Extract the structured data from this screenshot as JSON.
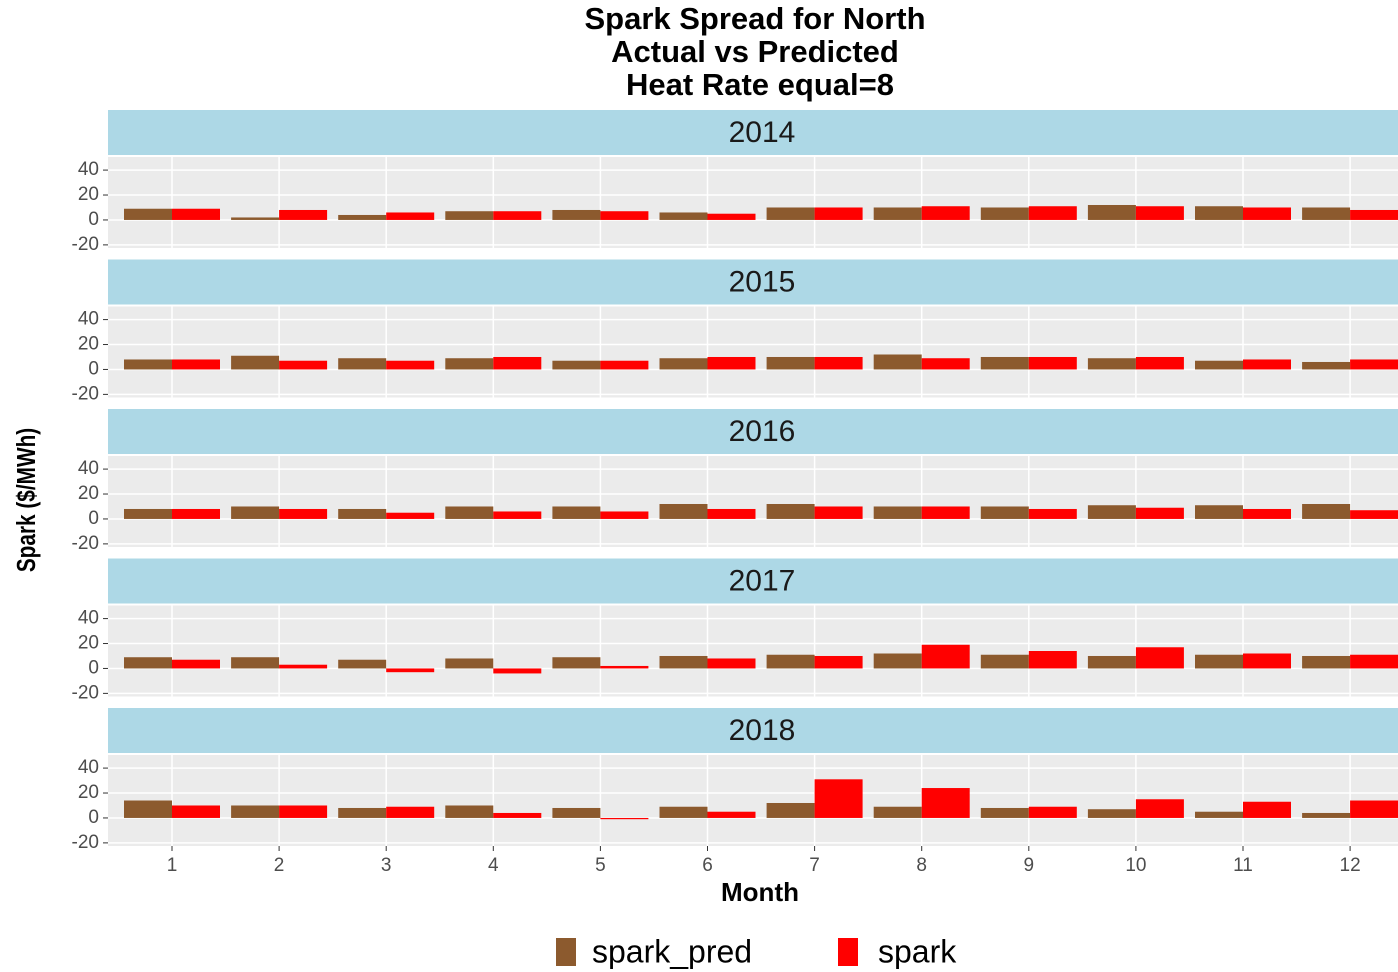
{
  "chart_data": {
    "type": "bar",
    "title": [
      "Spark Spread for North",
      "Actual vs Predicted",
      "Heat Rate equal=8"
    ],
    "xlabel": "Month",
    "ylabel": "Spark ($/MWh)",
    "categories": [
      1,
      2,
      3,
      4,
      5,
      6,
      7,
      8,
      9,
      10,
      11,
      12
    ],
    "ylim": [
      -22.5,
      50.5
    ],
    "yticks": [
      -20,
      0,
      20,
      40
    ],
    "grid": true,
    "series": [
      {
        "name": "spark_pred",
        "color": "#8c5a2e"
      },
      {
        "name": "spark",
        "color": "#ff0000"
      }
    ],
    "facets": [
      {
        "label": "2014",
        "values": [
          [
            9,
            2,
            4,
            7,
            8,
            6,
            10,
            10,
            10,
            12,
            11,
            10
          ],
          [
            9,
            8,
            6,
            7,
            7,
            5,
            10,
            11,
            11,
            11,
            10,
            8
          ]
        ]
      },
      {
        "label": "2015",
        "values": [
          [
            8,
            11,
            9,
            9,
            7,
            9,
            10,
            12,
            10,
            9,
            7,
            6
          ],
          [
            8,
            7,
            7,
            10,
            7,
            10,
            10,
            9,
            10,
            10,
            8,
            8
          ]
        ]
      },
      {
        "label": "2016",
        "values": [
          [
            8,
            10,
            8,
            10,
            10,
            12,
            12,
            10,
            10,
            11,
            11,
            12
          ],
          [
            8,
            8,
            5,
            6,
            6,
            8,
            10,
            10,
            8,
            9,
            8,
            7
          ]
        ]
      },
      {
        "label": "2017",
        "values": [
          [
            9,
            9,
            7,
            8,
            9,
            10,
            11,
            12,
            11,
            10,
            11,
            10
          ],
          [
            7,
            3,
            -3,
            -4,
            2,
            8,
            10,
            19,
            14,
            17,
            12,
            11
          ]
        ]
      },
      {
        "label": "2018",
        "values": [
          [
            14,
            10,
            8,
            10,
            8,
            9,
            12,
            9,
            8,
            7,
            5,
            4
          ],
          [
            10,
            10,
            9,
            4,
            -1,
            5,
            31,
            24,
            9,
            15,
            13,
            14
          ]
        ]
      }
    ]
  }
}
